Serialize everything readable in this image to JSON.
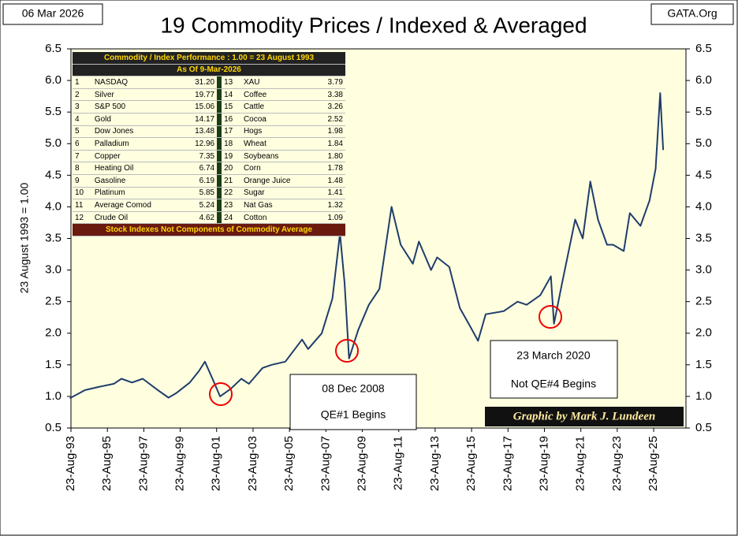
{
  "chart_data": {
    "type": "line",
    "title": "19 Commodity Prices / Indexed & Averaged",
    "date_label": "06 Mar 2026",
    "source": "GATA.Org",
    "y_label": "23 August 1993  = 1.00",
    "credit": "Graphic by Mark J. Lundeen",
    "annotations": [
      {
        "line1": "08 Dec 2008",
        "line2": "QE#1  Begins"
      },
      {
        "line1": "23 March  2020",
        "line2": "Not QE#4 Begins"
      }
    ],
    "xlim": [
      "1993-08-23",
      "2027-06-01"
    ],
    "xticks": [
      {
        "value": "1993-08-23",
        "label": "23-Aug-93"
      },
      {
        "value": "1995-08-23",
        "label": "23-Aug-95"
      },
      {
        "value": "1997-08-23",
        "label": "23-Aug-97"
      },
      {
        "value": "1999-08-23",
        "label": "23-Aug-99"
      },
      {
        "value": "2001-08-23",
        "label": "23-Aug-01"
      },
      {
        "value": "2003-08-23",
        "label": "23-Aug-03"
      },
      {
        "value": "2005-08-23",
        "label": "23-Aug-05"
      },
      {
        "value": "2007-08-23",
        "label": "23-Aug-07"
      },
      {
        "value": "2009-08-23",
        "label": "23-Aug-09"
      },
      {
        "value": "2011-08-23",
        "label": "23-Aug-11"
      },
      {
        "value": "2013-08-23",
        "label": "23-Aug-13"
      },
      {
        "value": "2015-08-23",
        "label": "23-Aug-15"
      },
      {
        "value": "2017-08-23",
        "label": "23-Aug-17"
      },
      {
        "value": "2019-08-23",
        "label": "23-Aug-19"
      },
      {
        "value": "2021-08-23",
        "label": "23-Aug-21"
      },
      {
        "value": "2023-08-23",
        "label": "23-Aug-23"
      },
      {
        "value": "2025-08-23",
        "label": "23-Aug-25"
      }
    ],
    "ylim": [
      0.5,
      6.5
    ],
    "yticks": [
      0.5,
      {
        "value": 1,
        "label": "1.0"
      },
      1.5,
      {
        "value": 2,
        "label": "2.0"
      },
      2.5,
      {
        "value": 3,
        "label": "3.0"
      },
      3.5,
      {
        "value": 4,
        "label": "4.0"
      },
      4.5,
      {
        "value": 5,
        "label": "5.0"
      },
      5.5,
      {
        "value": 6,
        "label": "6.0"
      },
      6.5
    ],
    "x": [
      "1993-08",
      "1994-06",
      "1995-03",
      "1996-01",
      "1996-06",
      "1997-01",
      "1997-08",
      "1998-06",
      "1999-01",
      "1999-06",
      "2000-03",
      "2000-09",
      "2001-01",
      "2001-06",
      "2001-11",
      "2002-06",
      "2003-01",
      "2003-06",
      "2004-03",
      "2004-09",
      "2005-06",
      "2006-05",
      "2006-09",
      "2007-06",
      "2008-01",
      "2008-06",
      "2008-09",
      "2008-12",
      "2009-06",
      "2010-01",
      "2010-08",
      "2011-04",
      "2011-10",
      "2012-06",
      "2012-10",
      "2013-06",
      "2013-10",
      "2014-06",
      "2015-01",
      "2015-08",
      "2016-01",
      "2016-06",
      "2017-06",
      "2018-03",
      "2018-09",
      "2019-06",
      "2020-01",
      "2020-03",
      "2020-08",
      "2021-05",
      "2021-10",
      "2022-03",
      "2022-08",
      "2023-02",
      "2023-06",
      "2024-01",
      "2024-05",
      "2024-12",
      "2025-06",
      "2025-10",
      "2026-01",
      "2026-03"
    ],
    "series": [
      {
        "color": "#1f3d6b",
        "values": [
          0.97,
          1.1,
          1.15,
          1.2,
          1.28,
          1.22,
          1.28,
          1.1,
          0.98,
          1.05,
          1.22,
          1.4,
          1.55,
          1.28,
          1.0,
          1.12,
          1.28,
          1.2,
          1.45,
          1.5,
          1.55,
          1.9,
          1.75,
          2.0,
          2.55,
          3.58,
          2.8,
          1.6,
          2.05,
          2.45,
          2.7,
          4.0,
          3.4,
          3.1,
          3.45,
          3.0,
          3.2,
          3.05,
          2.4,
          2.1,
          1.88,
          2.3,
          2.35,
          2.5,
          2.45,
          2.6,
          2.9,
          2.15,
          2.75,
          3.8,
          3.5,
          4.4,
          3.8,
          3.4,
          3.4,
          3.3,
          3.9,
          3.7,
          4.1,
          4.6,
          5.8,
          4.9
        ]
      }
    ]
  },
  "table": {
    "title": "Commodity / Index Performance : 1.00 = 23 August 1993",
    "subtitle": "As Of    9-Mar-2026",
    "rows": [
      [
        "1",
        "NASDAQ",
        "31.20",
        "13",
        "XAU",
        "3.79"
      ],
      [
        "2",
        "Silver",
        "19.77",
        "14",
        "Coffee",
        "3.38"
      ],
      [
        "3",
        "S&P 500",
        "15.06",
        "15",
        "Cattle",
        "3.26"
      ],
      [
        "4",
        "Gold",
        "14.17",
        "16",
        "Cocoa",
        "2.52"
      ],
      [
        "5",
        "Dow Jones",
        "13.48",
        "17",
        "Hogs",
        "1.98"
      ],
      [
        "6",
        "Palladium",
        "12.96",
        "18",
        "Wheat",
        "1.84"
      ],
      [
        "7",
        "Copper",
        "7.35",
        "19",
        "Soybeans",
        "1.80"
      ],
      [
        "8",
        "Heating Oil",
        "6.74",
        "20",
        "Corn",
        "1.78"
      ],
      [
        "9",
        "Gasoline",
        "6.19",
        "21",
        "Orange Juice",
        "1.48"
      ],
      [
        "10",
        "Platinum",
        "5.85",
        "22",
        "Sugar",
        "1.41"
      ],
      [
        "11",
        "Average Comod",
        "5.24",
        "23",
        "Nat Gas",
        "1.32"
      ],
      [
        "12",
        "Crude Oil",
        "4.62",
        "24",
        "Cotton",
        "1.09"
      ]
    ],
    "footer": "Stock Indexes Not Components of Commodity Average"
  }
}
